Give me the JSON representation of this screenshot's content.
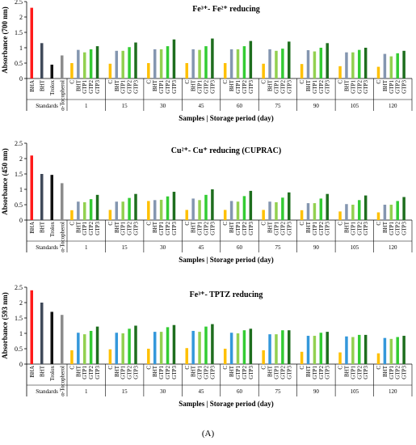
{
  "caption": "(A)",
  "storage_period_days": [
    "1",
    "15",
    "30",
    "45",
    "60",
    "75",
    "90",
    "105",
    "120"
  ],
  "colors": {
    "BHA": "#ff1a1a",
    "BHT_standard": "#404a5a",
    "Trolox": "#111111",
    "alpha_Tocopherol": "#8c8c8c",
    "C": "#ffc000",
    "BHT_sample": "#8496b0",
    "GTP1": "#92d050",
    "GTP2": "#33cc33",
    "GTP3": "#1e6e1e",
    "BHT_sample_panel3": "#3498db"
  },
  "chart_data": [
    {
      "type": "bar",
      "title": "Fe³⁺- Fe²⁺ reducing",
      "xlabel": "Samples | Storage period (day)",
      "ylabel": "Absorbance (700 nm)",
      "ylim": [
        0,
        2.5
      ],
      "yticks": [
        "0",
        "0.5",
        "1",
        "1.5",
        "2",
        "2.5"
      ],
      "grid": false,
      "standards_label": "Standards",
      "standards": [
        {
          "name": "BHA",
          "value": 2.3
        },
        {
          "name": "BHT",
          "value": 1.15
        },
        {
          "name": "Trolox",
          "value": 0.45
        },
        {
          "name": "α-Tocopherol",
          "value": 0.75
        }
      ],
      "group_categories": [
        "C",
        "BHT",
        "GTP1",
        "GTP2",
        "GTP3"
      ],
      "groups": [
        {
          "label": "1",
          "values": [
            0.5,
            0.93,
            0.85,
            0.95,
            1.05
          ]
        },
        {
          "label": "15",
          "values": [
            0.48,
            0.9,
            0.9,
            1.02,
            1.17
          ]
        },
        {
          "label": "30",
          "values": [
            0.5,
            0.95,
            0.95,
            1.05,
            1.27
          ]
        },
        {
          "label": "45",
          "values": [
            0.5,
            0.95,
            0.93,
            1.05,
            1.3
          ]
        },
        {
          "label": "60",
          "values": [
            0.5,
            0.95,
            0.95,
            1.05,
            1.22
          ]
        },
        {
          "label": "75",
          "values": [
            0.48,
            0.95,
            0.9,
            0.97,
            1.2
          ]
        },
        {
          "label": "90",
          "values": [
            0.47,
            0.92,
            0.88,
            1.0,
            1.15
          ]
        },
        {
          "label": "105",
          "values": [
            0.4,
            0.85,
            0.85,
            0.93,
            1.0
          ]
        },
        {
          "label": "120",
          "values": [
            0.38,
            0.8,
            0.72,
            0.82,
            0.9
          ]
        }
      ]
    },
    {
      "type": "bar",
      "title": "Cu²⁺- Cu⁺ reducing (CUPRAC)",
      "xlabel": "Samples | Storage period (day)",
      "ylabel": "Absorbance (450 nm)",
      "ylim": [
        0,
        2.5
      ],
      "yticks": [
        "0",
        "0.5",
        "1",
        "1.5",
        "2",
        "2.5"
      ],
      "grid": false,
      "standards_label": "Standards",
      "standards": [
        {
          "name": "BHA",
          "value": 2.1
        },
        {
          "name": "BHT",
          "value": 1.5
        },
        {
          "name": "Trolox",
          "value": 1.47
        },
        {
          "name": "α-Tocopherol",
          "value": 1.2
        }
      ],
      "group_categories": [
        "C",
        "BHT",
        "GTP1",
        "GTP2",
        "GTP3"
      ],
      "groups": [
        {
          "label": "1",
          "values": [
            0.32,
            0.6,
            0.58,
            0.68,
            0.82
          ]
        },
        {
          "label": "15",
          "values": [
            0.33,
            0.6,
            0.6,
            0.72,
            0.85
          ]
        },
        {
          "label": "30",
          "values": [
            0.62,
            0.65,
            0.66,
            0.77,
            0.92
          ]
        },
        {
          "label": "45",
          "values": [
            0.33,
            0.7,
            0.65,
            0.82,
            1.0
          ]
        },
        {
          "label": "60",
          "values": [
            0.33,
            0.62,
            0.6,
            0.78,
            0.95
          ]
        },
        {
          "label": "75",
          "values": [
            0.33,
            0.6,
            0.58,
            0.73,
            0.9
          ]
        },
        {
          "label": "90",
          "values": [
            0.32,
            0.55,
            0.55,
            0.7,
            0.85
          ]
        },
        {
          "label": "105",
          "values": [
            0.28,
            0.52,
            0.5,
            0.65,
            0.8
          ]
        },
        {
          "label": "120",
          "values": [
            0.25,
            0.5,
            0.5,
            0.62,
            0.75
          ]
        }
      ]
    },
    {
      "type": "bar",
      "title": "Fe³⁺- TPTZ reducing",
      "xlabel": "Samples | Storage period (day)",
      "ylabel": "Absorbance (593 nm)",
      "ylim": [
        0,
        2.5
      ],
      "yticks": [
        "0",
        "0.5",
        "1",
        "1.5",
        "2",
        "2.5"
      ],
      "grid": false,
      "standards_label": "Standards",
      "standards": [
        {
          "name": "BHA",
          "value": 2.4
        },
        {
          "name": "BHT",
          "value": 2.0
        },
        {
          "name": "Trolox",
          "value": 1.7
        },
        {
          "name": "α-Tocopherol",
          "value": 1.6
        }
      ],
      "group_categories": [
        "C",
        "BHT",
        "GTP1",
        "GTP2",
        "GTP3"
      ],
      "groups": [
        {
          "label": "1",
          "values": [
            0.45,
            1.02,
            0.97,
            1.08,
            1.22
          ]
        },
        {
          "label": "15",
          "values": [
            0.48,
            1.02,
            1.0,
            1.15,
            1.25
          ]
        },
        {
          "label": "30",
          "values": [
            0.5,
            1.05,
            1.05,
            1.2,
            1.27
          ]
        },
        {
          "label": "45",
          "values": [
            0.52,
            1.08,
            1.05,
            1.22,
            1.3
          ]
        },
        {
          "label": "60",
          "values": [
            0.5,
            1.02,
            1.0,
            1.1,
            1.15
          ]
        },
        {
          "label": "75",
          "values": [
            0.45,
            0.97,
            0.97,
            1.1,
            1.1
          ]
        },
        {
          "label": "90",
          "values": [
            0.4,
            0.92,
            0.92,
            1.02,
            1.05
          ]
        },
        {
          "label": "105",
          "values": [
            0.38,
            0.9,
            0.88,
            0.95,
            0.95
          ]
        },
        {
          "label": "120",
          "values": [
            0.35,
            0.85,
            0.82,
            0.88,
            0.92
          ]
        }
      ]
    }
  ]
}
